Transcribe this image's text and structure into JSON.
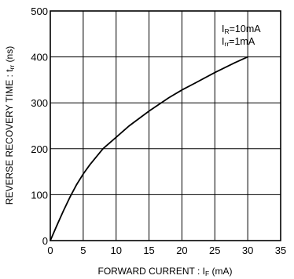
{
  "chart_data": {
    "type": "line",
    "xlabel": "FORWARD CURRENT : IF (mA)",
    "ylabel": "REVERSE RECOVERY TIME : trr (ns)",
    "xlim": [
      0,
      35
    ],
    "ylim": [
      0,
      500
    ],
    "x_ticks": [
      0,
      5,
      10,
      15,
      20,
      25,
      30,
      35
    ],
    "y_ticks": [
      0,
      100,
      200,
      300,
      400,
      500
    ],
    "grid": true,
    "conditions": [
      "IR=10mA",
      "Irr=1mA"
    ],
    "series": [
      {
        "x": [
          0,
          1,
          2,
          3,
          4,
          5,
          6,
          8,
          10,
          12,
          15,
          18,
          20,
          22,
          25,
          28,
          30
        ],
        "y": [
          0,
          33,
          65,
          95,
          122,
          145,
          165,
          200,
          225,
          250,
          282,
          311,
          328,
          343,
          366,
          387,
          400
        ]
      }
    ],
    "line_color": "#000000"
  }
}
